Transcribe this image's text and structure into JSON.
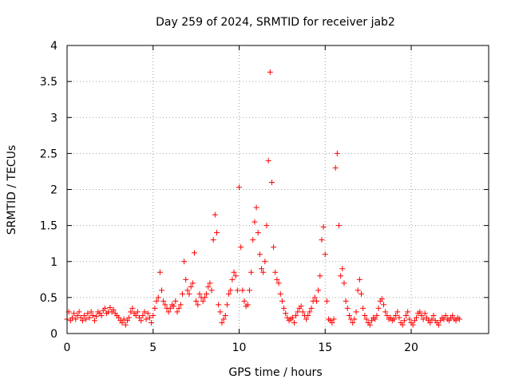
{
  "chart_data": {
    "type": "scatter",
    "title": "Day 259 of 2024, SRMTID for receiver jab2",
    "xlabel": "GPS time / hours",
    "ylabel": "SRMTID / TECUs",
    "xlim": [
      0,
      24.5
    ],
    "ylim": [
      0,
      4
    ],
    "xticks": [
      0,
      5,
      10,
      15,
      20
    ],
    "xtick_labels": [
      "0",
      "5",
      "10",
      "15",
      "20"
    ],
    "yticks": [
      0,
      0.5,
      1,
      1.5,
      2,
      2.5,
      3,
      3.5,
      4
    ],
    "ytick_labels": [
      "0",
      "0.5",
      "1",
      "1.5",
      "2",
      "2.5",
      "3",
      "3.5",
      "4"
    ],
    "grid": true,
    "marker": "+",
    "series": [
      {
        "name": "SRMTID",
        "color": "#ff0000",
        "points": [
          [
            0.0,
            0.2
          ],
          [
            0.1,
            0.3
          ],
          [
            0.2,
            0.18
          ],
          [
            0.3,
            0.22
          ],
          [
            0.4,
            0.28
          ],
          [
            0.5,
            0.2
          ],
          [
            0.6,
            0.25
          ],
          [
            0.7,
            0.3
          ],
          [
            0.8,
            0.22
          ],
          [
            0.9,
            0.18
          ],
          [
            1.0,
            0.25
          ],
          [
            1.1,
            0.2
          ],
          [
            1.2,
            0.28
          ],
          [
            1.3,
            0.22
          ],
          [
            1.4,
            0.3
          ],
          [
            1.5,
            0.25
          ],
          [
            1.6,
            0.18
          ],
          [
            1.7,
            0.24
          ],
          [
            1.8,
            0.3
          ],
          [
            1.9,
            0.28
          ],
          [
            2.0,
            0.25
          ],
          [
            2.1,
            0.32
          ],
          [
            2.2,
            0.35
          ],
          [
            2.3,
            0.28
          ],
          [
            2.4,
            0.3
          ],
          [
            2.5,
            0.36
          ],
          [
            2.6,
            0.3
          ],
          [
            2.7,
            0.33
          ],
          [
            2.8,
            0.28
          ],
          [
            2.9,
            0.25
          ],
          [
            3.0,
            0.22
          ],
          [
            3.1,
            0.18
          ],
          [
            3.2,
            0.15
          ],
          [
            3.3,
            0.2
          ],
          [
            3.4,
            0.12
          ],
          [
            3.5,
            0.18
          ],
          [
            3.6,
            0.22
          ],
          [
            3.7,
            0.3
          ],
          [
            3.8,
            0.35
          ],
          [
            3.9,
            0.28
          ],
          [
            4.0,
            0.25
          ],
          [
            4.1,
            0.3
          ],
          [
            4.2,
            0.22
          ],
          [
            4.3,
            0.18
          ],
          [
            4.4,
            0.25
          ],
          [
            4.5,
            0.3
          ],
          [
            4.6,
            0.2
          ],
          [
            4.7,
            0.28
          ],
          [
            4.8,
            0.22
          ],
          [
            4.9,
            0.15
          ],
          [
            5.0,
            0.25
          ],
          [
            5.1,
            0.35
          ],
          [
            5.2,
            0.45
          ],
          [
            5.3,
            0.5
          ],
          [
            5.4,
            0.85
          ],
          [
            5.5,
            0.6
          ],
          [
            5.6,
            0.45
          ],
          [
            5.7,
            0.4
          ],
          [
            5.8,
            0.35
          ],
          [
            5.9,
            0.3
          ],
          [
            6.0,
            0.35
          ],
          [
            6.1,
            0.4
          ],
          [
            6.2,
            0.38
          ],
          [
            6.3,
            0.45
          ],
          [
            6.4,
            0.3
          ],
          [
            6.5,
            0.35
          ],
          [
            6.6,
            0.4
          ],
          [
            6.7,
            0.55
          ],
          [
            6.8,
            1.0
          ],
          [
            6.9,
            0.75
          ],
          [
            7.0,
            0.6
          ],
          [
            7.1,
            0.55
          ],
          [
            7.2,
            0.65
          ],
          [
            7.3,
            0.7
          ],
          [
            7.4,
            1.12
          ],
          [
            7.5,
            0.45
          ],
          [
            7.6,
            0.4
          ],
          [
            7.7,
            0.55
          ],
          [
            7.8,
            0.5
          ],
          [
            7.9,
            0.45
          ],
          [
            8.0,
            0.5
          ],
          [
            8.1,
            0.55
          ],
          [
            8.2,
            0.65
          ],
          [
            8.3,
            0.7
          ],
          [
            8.4,
            0.6
          ],
          [
            8.5,
            1.3
          ],
          [
            8.6,
            1.65
          ],
          [
            8.7,
            1.4
          ],
          [
            8.8,
            0.4
          ],
          [
            8.9,
            0.3
          ],
          [
            9.0,
            0.15
          ],
          [
            9.1,
            0.2
          ],
          [
            9.2,
            0.25
          ],
          [
            9.3,
            0.4
          ],
          [
            9.4,
            0.55
          ],
          [
            9.5,
            0.6
          ],
          [
            9.6,
            0.75
          ],
          [
            9.7,
            0.85
          ],
          [
            9.8,
            0.8
          ],
          [
            9.9,
            0.6
          ],
          [
            10.0,
            2.03
          ],
          [
            10.1,
            1.2
          ],
          [
            10.2,
            0.6
          ],
          [
            10.3,
            0.45
          ],
          [
            10.4,
            0.38
          ],
          [
            10.5,
            0.4
          ],
          [
            10.6,
            0.6
          ],
          [
            10.7,
            0.85
          ],
          [
            10.8,
            1.3
          ],
          [
            10.9,
            1.55
          ],
          [
            11.0,
            1.75
          ],
          [
            11.1,
            1.4
          ],
          [
            11.2,
            1.1
          ],
          [
            11.3,
            0.9
          ],
          [
            11.4,
            0.85
          ],
          [
            11.5,
            1.0
          ],
          [
            11.6,
            1.5
          ],
          [
            11.7,
            2.4
          ],
          [
            11.8,
            3.63
          ],
          [
            11.9,
            2.1
          ],
          [
            12.0,
            1.2
          ],
          [
            12.1,
            0.85
          ],
          [
            12.2,
            0.75
          ],
          [
            12.3,
            0.7
          ],
          [
            12.4,
            0.55
          ],
          [
            12.5,
            0.45
          ],
          [
            12.6,
            0.35
          ],
          [
            12.7,
            0.28
          ],
          [
            12.8,
            0.22
          ],
          [
            12.9,
            0.18
          ],
          [
            13.0,
            0.2
          ],
          [
            13.1,
            0.22
          ],
          [
            13.2,
            0.15
          ],
          [
            13.3,
            0.25
          ],
          [
            13.4,
            0.3
          ],
          [
            13.5,
            0.35
          ],
          [
            13.6,
            0.38
          ],
          [
            13.7,
            0.3
          ],
          [
            13.8,
            0.25
          ],
          [
            13.9,
            0.2
          ],
          [
            14.0,
            0.25
          ],
          [
            14.1,
            0.3
          ],
          [
            14.2,
            0.35
          ],
          [
            14.3,
            0.45
          ],
          [
            14.4,
            0.5
          ],
          [
            14.5,
            0.45
          ],
          [
            14.6,
            0.6
          ],
          [
            14.7,
            0.8
          ],
          [
            14.8,
            1.3
          ],
          [
            14.9,
            1.48
          ],
          [
            15.0,
            1.1
          ],
          [
            15.1,
            0.45
          ],
          [
            15.2,
            0.2
          ],
          [
            15.3,
            0.18
          ],
          [
            15.4,
            0.15
          ],
          [
            15.5,
            0.2
          ],
          [
            15.6,
            2.3
          ],
          [
            15.7,
            2.5
          ],
          [
            15.8,
            1.5
          ],
          [
            15.9,
            0.8
          ],
          [
            16.0,
            0.9
          ],
          [
            16.1,
            0.7
          ],
          [
            16.2,
            0.45
          ],
          [
            16.3,
            0.35
          ],
          [
            16.4,
            0.25
          ],
          [
            16.5,
            0.2
          ],
          [
            16.6,
            0.15
          ],
          [
            16.7,
            0.2
          ],
          [
            16.8,
            0.3
          ],
          [
            16.9,
            0.6
          ],
          [
            17.0,
            0.75
          ],
          [
            17.1,
            0.55
          ],
          [
            17.2,
            0.35
          ],
          [
            17.3,
            0.25
          ],
          [
            17.4,
            0.2
          ],
          [
            17.5,
            0.15
          ],
          [
            17.6,
            0.12
          ],
          [
            17.7,
            0.18
          ],
          [
            17.8,
            0.22
          ],
          [
            17.9,
            0.2
          ],
          [
            18.0,
            0.25
          ],
          [
            18.1,
            0.35
          ],
          [
            18.2,
            0.45
          ],
          [
            18.3,
            0.48
          ],
          [
            18.4,
            0.4
          ],
          [
            18.5,
            0.3
          ],
          [
            18.6,
            0.25
          ],
          [
            18.7,
            0.2
          ],
          [
            18.8,
            0.22
          ],
          [
            18.9,
            0.18
          ],
          [
            19.0,
            0.2
          ],
          [
            19.1,
            0.25
          ],
          [
            19.2,
            0.3
          ],
          [
            19.3,
            0.22
          ],
          [
            19.4,
            0.15
          ],
          [
            19.5,
            0.12
          ],
          [
            19.6,
            0.18
          ],
          [
            19.7,
            0.25
          ],
          [
            19.8,
            0.3
          ],
          [
            19.9,
            0.2
          ],
          [
            20.0,
            0.15
          ],
          [
            20.1,
            0.12
          ],
          [
            20.2,
            0.18
          ],
          [
            20.3,
            0.22
          ],
          [
            20.4,
            0.28
          ],
          [
            20.5,
            0.3
          ],
          [
            20.6,
            0.25
          ],
          [
            20.7,
            0.2
          ],
          [
            20.8,
            0.28
          ],
          [
            20.9,
            0.22
          ],
          [
            21.0,
            0.18
          ],
          [
            21.1,
            0.15
          ],
          [
            21.2,
            0.2
          ],
          [
            21.3,
            0.25
          ],
          [
            21.4,
            0.18
          ],
          [
            21.5,
            0.15
          ],
          [
            21.6,
            0.12
          ],
          [
            21.7,
            0.18
          ],
          [
            21.8,
            0.22
          ],
          [
            21.9,
            0.2
          ],
          [
            22.0,
            0.25
          ],
          [
            22.1,
            0.2
          ],
          [
            22.2,
            0.18
          ],
          [
            22.3,
            0.22
          ],
          [
            22.4,
            0.25
          ],
          [
            22.5,
            0.2
          ],
          [
            22.6,
            0.18
          ],
          [
            22.7,
            0.22
          ],
          [
            22.8,
            0.2
          ]
        ]
      }
    ]
  }
}
